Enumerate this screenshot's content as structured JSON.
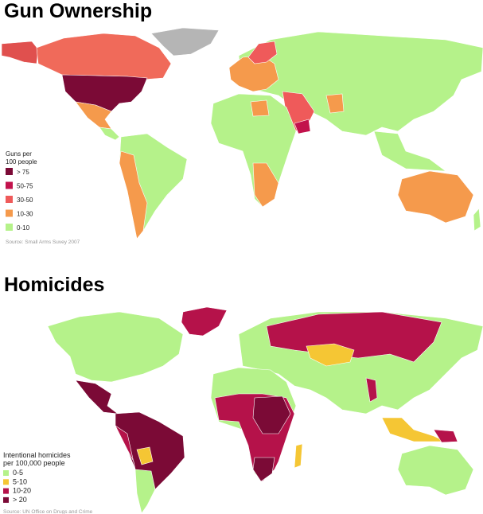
{
  "maps": [
    {
      "title": "Gun Ownership",
      "legend_title": [
        "Guns per",
        "100 people"
      ],
      "legend": [
        {
          "label": "> 75",
          "color": "#7b0a36"
        },
        {
          "label": "50-75",
          "color": "#c2124c"
        },
        {
          "label": "30-50",
          "color": "#ef5a5a"
        },
        {
          "label": "10-30",
          "color": "#f59a4c"
        },
        {
          "label": "0-10",
          "color": "#b5f28a"
        }
      ],
      "source": "Source: Small Arms Suvey 2007"
    },
    {
      "title": "Homicides",
      "legend_title": [
        "Intentional homicides",
        "per 100,000 people"
      ],
      "legend": [
        {
          "label": "0-5",
          "color": "#b5f28a"
        },
        {
          "label": "5-10",
          "color": "#f5c634"
        },
        {
          "label": "10-20",
          "color": "#b5124a"
        },
        {
          "label": "> 20",
          "color": "#7b0a36"
        }
      ],
      "source": "Source: UN Office on Drugs and Crime"
    }
  ]
}
